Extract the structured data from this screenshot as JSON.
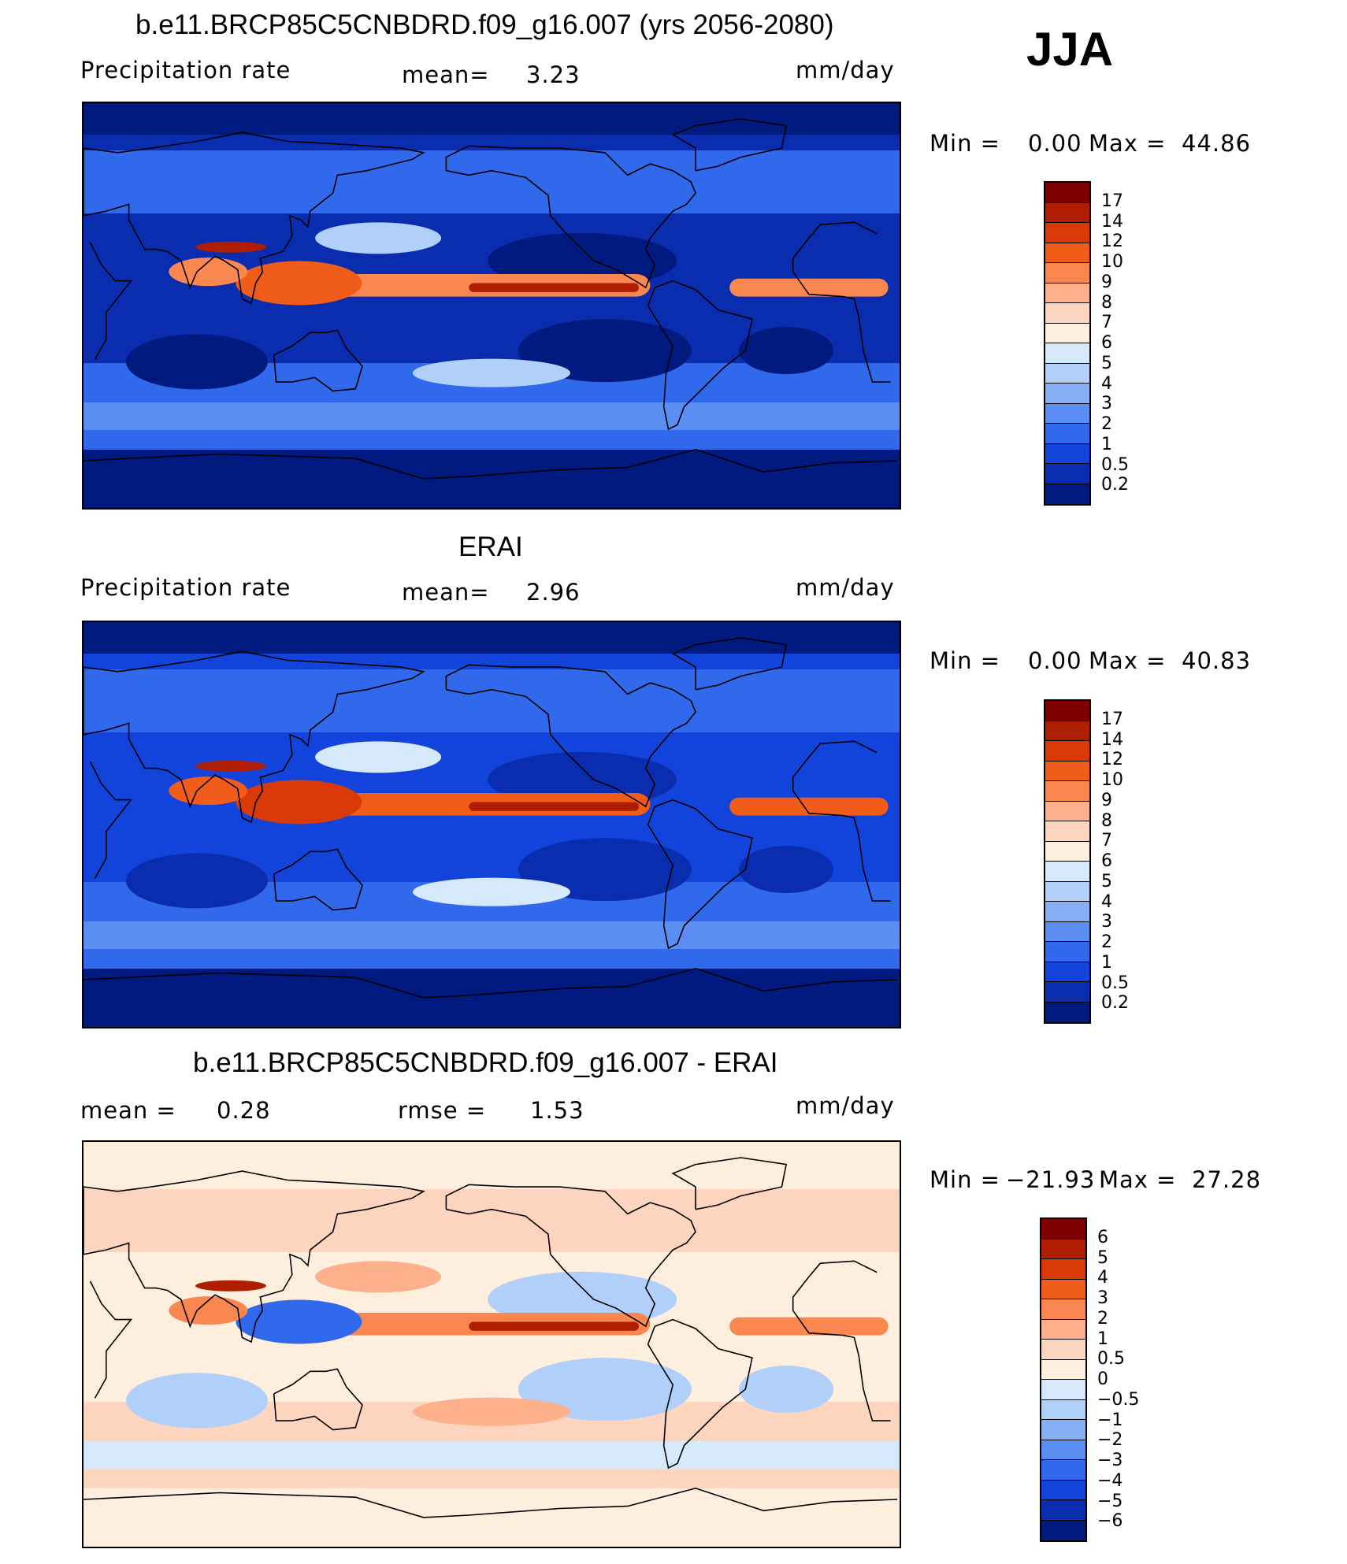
{
  "season": "JJA",
  "panels": [
    {
      "title": "b.e11.BRCP85C5CNBDRD.f09_g16.007 (yrs 2056-2080)",
      "left_label": "Precipitation  rate",
      "mean_label": "mean=",
      "mean_value": "3.23",
      "units": "mm/day",
      "min_label": "Min  =",
      "min_value": "0.00",
      "max_label": "Max  =",
      "max_value": "44.86",
      "colorbar_labels": [
        "17",
        "14",
        "12",
        "10",
        "9",
        "8",
        "7",
        "6",
        "5",
        "4",
        "3",
        "2",
        "1",
        "0.5",
        "0.2"
      ],
      "colorbar_colors": [
        "#7f0000",
        "#b01e02",
        "#d93a05",
        "#f25c1a",
        "#fb8750",
        "#fdb08a",
        "#fdd4be",
        "#fdeede",
        "#d6e9fb",
        "#b0cff9",
        "#86b0f6",
        "#5a8ef2",
        "#3069ec",
        "#1244dc",
        "#0a2db0",
        "#001a80"
      ],
      "field_colors": {
        "background": "#0a2db0",
        "polar": "#001a80",
        "midlat": "#3069ec",
        "storm": "#5a8ef2",
        "subtropic_dry": "#001a80",
        "itcz": "#fb8750",
        "itcz_core": "#b01e02",
        "warm_pool": "#f25c1a",
        "light": "#b0cff9"
      }
    },
    {
      "title": "ERAI",
      "left_label": "Precipitation  rate",
      "mean_label": "mean=",
      "mean_value": "2.96",
      "units": "mm/day",
      "min_label": "Min  =",
      "min_value": "0.00",
      "max_label": "Max  =",
      "max_value": "40.83",
      "colorbar_labels": [
        "17",
        "14",
        "12",
        "10",
        "9",
        "8",
        "7",
        "6",
        "5",
        "4",
        "3",
        "2",
        "1",
        "0.5",
        "0.2"
      ],
      "colorbar_colors": [
        "#7f0000",
        "#b01e02",
        "#d93a05",
        "#f25c1a",
        "#fb8750",
        "#fdb08a",
        "#fdd4be",
        "#fdeede",
        "#d6e9fb",
        "#b0cff9",
        "#86b0f6",
        "#5a8ef2",
        "#3069ec",
        "#1244dc",
        "#0a2db0",
        "#001a80"
      ],
      "field_colors": {
        "background": "#1244dc",
        "polar": "#001a80",
        "midlat": "#3069ec",
        "storm": "#5a8ef2",
        "subtropic_dry": "#0a2db0",
        "itcz": "#f25c1a",
        "itcz_core": "#b01e02",
        "warm_pool": "#d93a05",
        "light": "#d6e9fb"
      }
    },
    {
      "title": "b.e11.BRCP85C5CNBDRD.f09_g16.007 - ERAI",
      "left_label": "mean  =",
      "mean_value_left": "0.28",
      "mean_label": "rmse  =",
      "mean_value": "1.53",
      "units": "mm/day",
      "min_label": "Min  =",
      "min_value": "−21.93",
      "max_label": "Max  =",
      "max_value": "27.28",
      "colorbar_labels": [
        "6",
        "5",
        "4",
        "3",
        "2",
        "1",
        "0.5",
        "0",
        "−0.5",
        "−1",
        "−2",
        "−3",
        "−4",
        "−5",
        "−6"
      ],
      "colorbar_colors": [
        "#7f0000",
        "#b01e02",
        "#d93a05",
        "#f25c1a",
        "#fb8750",
        "#fdb08a",
        "#fdd4be",
        "#fdeede",
        "#d6e9fb",
        "#b0cff9",
        "#86b0f6",
        "#5a8ef2",
        "#3069ec",
        "#1244dc",
        "#0a2db0",
        "#001a80"
      ],
      "field_colors": {
        "background": "#fdeede",
        "polar": "#fdeede",
        "midlat": "#fdd4be",
        "storm": "#d6e9fb",
        "subtropic_dry": "#b0cff9",
        "itcz": "#fb8750",
        "itcz_core": "#b01e02",
        "warm_pool": "#3069ec",
        "light": "#fdb08a"
      }
    }
  ]
}
